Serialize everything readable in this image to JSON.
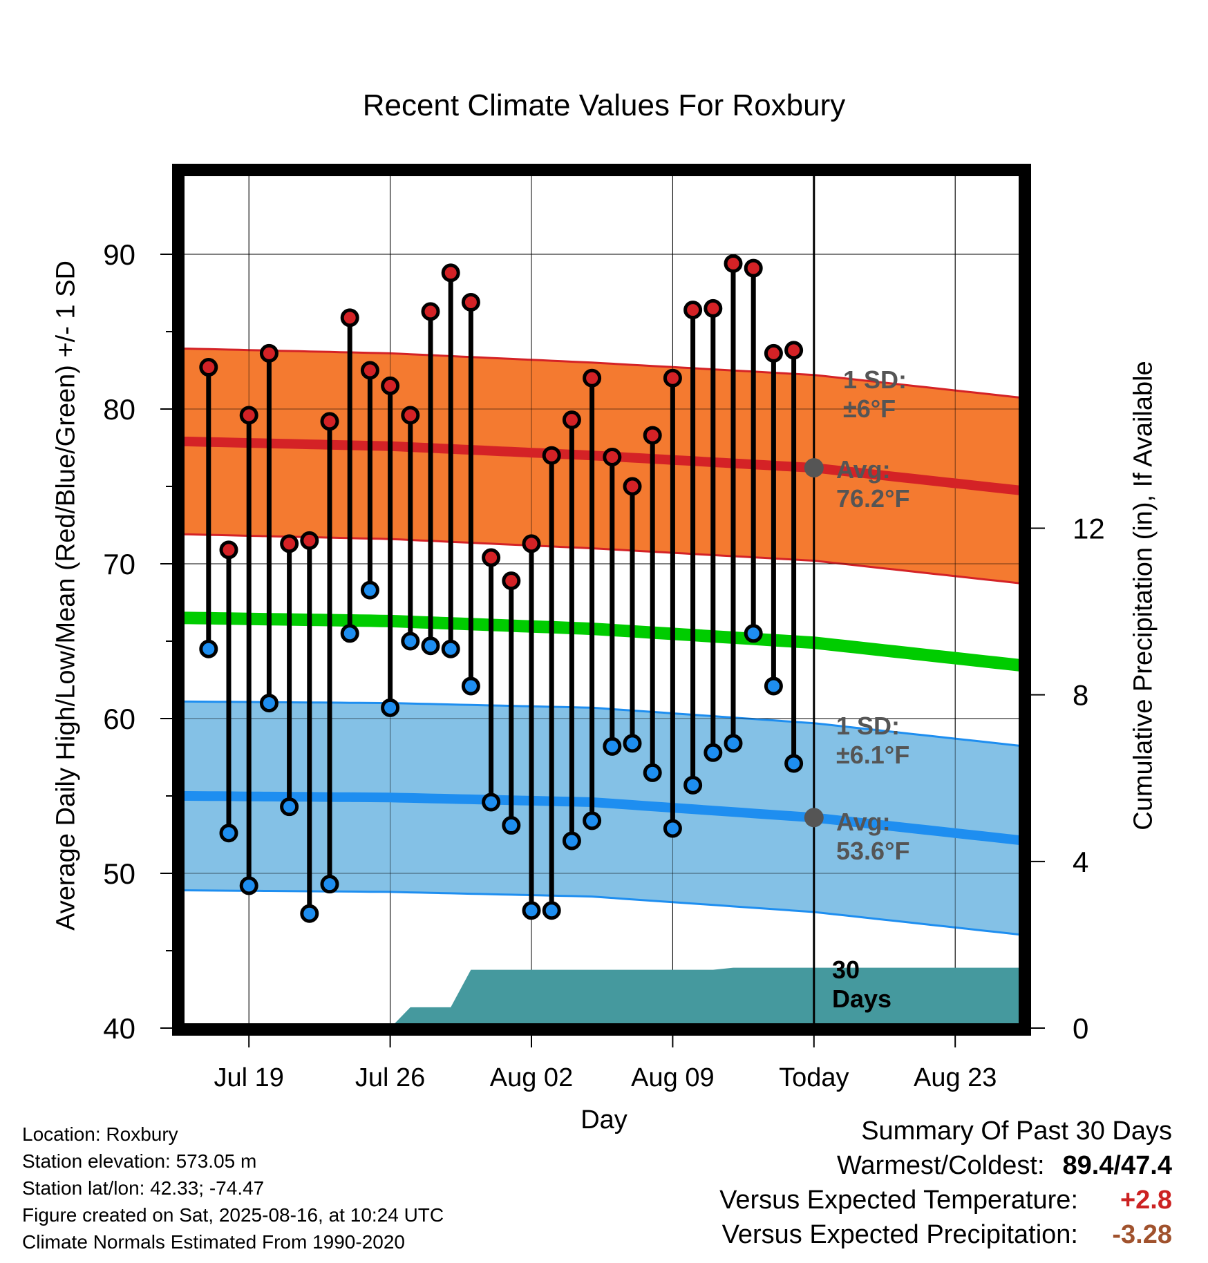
{
  "chart_data": {
    "type": "line",
    "title": "Recent Climate Values For Roxbury",
    "xlabel": "Day",
    "ylabel": "Average Daily High/Low/Mean (Red/Blue/Green) +/- 1 SD",
    "y2label": "Cumulative Precipitation (in), If Available",
    "ylim": [
      40,
      95
    ],
    "y_ticks": [
      40,
      50,
      60,
      70,
      80,
      90
    ],
    "y2lim": [
      0,
      20.6
    ],
    "y2_ticks": [
      0,
      4,
      8,
      12
    ],
    "x_ticks": [
      {
        "day": 3,
        "label": "Jul 19"
      },
      {
        "day": 10,
        "label": "Jul 26"
      },
      {
        "day": 17,
        "label": "Aug 02"
      },
      {
        "day": 24,
        "label": "Aug 09"
      },
      {
        "day": 31,
        "label": "Today"
      },
      {
        "day": 38,
        "label": "Aug 23"
      }
    ],
    "xlim": [
      -0.5,
      41.5
    ],
    "today_day": 31,
    "normal_high": {
      "x": [
        0,
        10,
        20,
        31,
        41.5
      ],
      "mean": [
        77.9,
        77.6,
        77.0,
        76.2,
        74.7
      ],
      "sd": 6
    },
    "normal_low": {
      "x": [
        0,
        10,
        20,
        31,
        41.5
      ],
      "mean": [
        55.0,
        54.9,
        54.6,
        53.6,
        52.1
      ],
      "sd": 6.1
    },
    "normal_mean": {
      "x": [
        0,
        10,
        20,
        31,
        41.5
      ],
      "values": [
        66.5,
        66.3,
        65.8,
        64.9,
        63.4
      ]
    },
    "daily_high": [
      82.7,
      70.9,
      79.6,
      83.6,
      71.3,
      71.5,
      79.2,
      85.9,
      82.5,
      81.5,
      79.6,
      86.3,
      88.8,
      86.9,
      70.4,
      68.9,
      71.3,
      77.0,
      79.3,
      82.0,
      76.9,
      75.0,
      78.3,
      82.0,
      86.4,
      86.5,
      89.4,
      89.1,
      83.6,
      83.8
    ],
    "daily_low": [
      64.5,
      52.6,
      49.2,
      61.0,
      54.3,
      47.4,
      49.3,
      65.5,
      68.3,
      60.7,
      65.0,
      64.7,
      64.5,
      62.1,
      54.6,
      53.1,
      47.6,
      47.6,
      52.1,
      53.4,
      58.2,
      58.4,
      56.5,
      52.9,
      55.7,
      57.8,
      58.4,
      65.5,
      62.1,
      57.1
    ],
    "cumulative_precip": {
      "x": [
        0,
        10,
        11,
        13,
        14,
        26,
        27,
        41.5
      ],
      "values": [
        0,
        0,
        0.5,
        0.5,
        1.4,
        1.4,
        1.45,
        1.45
      ]
    },
    "annotations": {
      "high_sd": [
        "1 SD:",
        "±6°F"
      ],
      "high_avg": [
        "Avg:",
        "76.2°F"
      ],
      "low_sd": [
        "1 SD:",
        "±6.1°F"
      ],
      "low_avg": [
        "Avg:",
        "53.6°F"
      ],
      "days": [
        "30",
        "Days"
      ]
    },
    "colors": {
      "high_band": "#f47a30",
      "high_line": "#d42226",
      "low_band": "#84c1e6",
      "low_line": "#1e8ef0",
      "mean_line": "#00cc00",
      "precip": "#45999e",
      "high_marker": "#d42226",
      "low_marker": "#1e8ef0",
      "annotation_text": "#555555"
    }
  },
  "meta": {
    "location": "Location: Roxbury",
    "elevation": "Station elevation: 573.05 m",
    "latlon": "Station lat/lon: 42.33; -74.47",
    "created": "Figure created on Sat, 2025-08-16, at 10:24 UTC",
    "normals": "Climate Normals Estimated From 1990-2020"
  },
  "summary": {
    "heading": "Summary Of Past 30 Days",
    "warm_cold_label": "Warmest/Coldest:",
    "warm_cold_value": "89.4/47.4",
    "temp_label": "Versus Expected Temperature:",
    "temp_value": "+2.8",
    "precip_label": "Versus Expected Precipitation:",
    "precip_value": "-3.28"
  }
}
